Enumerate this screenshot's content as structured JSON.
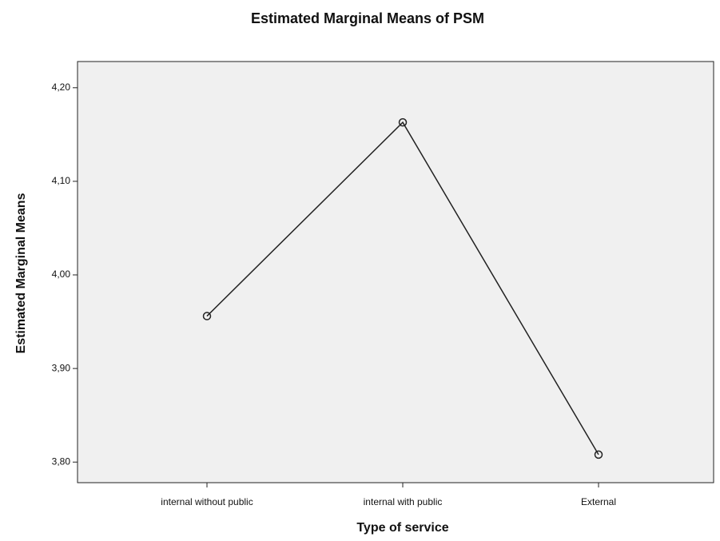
{
  "chart_data": {
    "type": "line",
    "title": "Estimated Marginal Means of PSM",
    "x_label": "Type of service",
    "y_label": "Estimated Marginal Means",
    "categories": [
      "internal without public",
      "internal with public",
      "External"
    ],
    "series": [
      {
        "name": "PSM",
        "color": "#222222",
        "values": [
          3.956,
          4.163,
          3.808
        ]
      }
    ],
    "ylim": [
      3.778,
      4.228
    ],
    "yticks": [
      {
        "value": 3.8,
        "label": "3,80"
      },
      {
        "value": 3.9,
        "label": "3,90"
      },
      {
        "value": 4.0,
        "label": "4,00"
      },
      {
        "value": 4.1,
        "label": "4,10"
      },
      {
        "value": 4.2,
        "label": "4,20"
      }
    ],
    "grid": false
  }
}
